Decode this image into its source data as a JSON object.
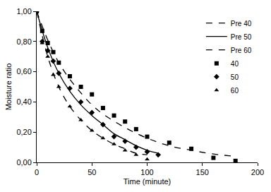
{
  "chart_data": {
    "type": "scatter",
    "x_label": "Time (minute)",
    "y_label": "Moisture ratio",
    "xlim": [
      0,
      200
    ],
    "xticks": [
      0,
      50,
      100,
      150,
      200
    ],
    "ylim": [
      0,
      1
    ],
    "yticks": [
      {
        "value": 0,
        "label": "0,00"
      },
      {
        "value": 0.2,
        "label": "0,20"
      },
      {
        "value": 0.4,
        "label": "0,40"
      },
      {
        "value": 0.6,
        "label": "0,60"
      },
      {
        "value": 0.8,
        "label": "0,80"
      },
      {
        "value": 1,
        "label": "1,00"
      }
    ],
    "grid": false,
    "legend": "upper right",
    "series": [
      {
        "name": "Pre 40",
        "type": "line",
        "line_style": "dashed",
        "color": "#000000",
        "x": [
          0,
          10,
          20,
          30,
          40,
          50,
          60,
          80,
          100,
          120,
          140,
          160,
          180
        ],
        "values": [
          1.0,
          0.81,
          0.66,
          0.55,
          0.46,
          0.38,
          0.32,
          0.23,
          0.16,
          0.11,
          0.08,
          0.055,
          0.04
        ]
      },
      {
        "name": "Pre 50",
        "type": "line",
        "line_style": "solid",
        "color": "#000000",
        "x": [
          0,
          10,
          20,
          30,
          40,
          50,
          60,
          70,
          80,
          90,
          100,
          110
        ],
        "values": [
          1.0,
          0.76,
          0.59,
          0.47,
          0.38,
          0.31,
          0.25,
          0.19,
          0.15,
          0.11,
          0.08,
          0.06
        ]
      },
      {
        "name": "Pre 60",
        "type": "line",
        "line_style": "dashed",
        "color": "#000000",
        "x": [
          0,
          10,
          20,
          30,
          40,
          50,
          60,
          70,
          80,
          90,
          100
        ],
        "values": [
          1.0,
          0.7,
          0.5,
          0.37,
          0.28,
          0.21,
          0.16,
          0.12,
          0.09,
          0.06,
          0.05
        ]
      },
      {
        "name": "40",
        "type": "scatter",
        "marker": "square",
        "color": "#000000",
        "x": [
          0,
          5,
          10,
          15,
          20,
          30,
          40,
          50,
          60,
          70,
          80,
          90,
          100,
          120,
          140,
          160,
          180
        ],
        "values": [
          1.0,
          0.87,
          0.79,
          0.73,
          0.66,
          0.57,
          0.5,
          0.45,
          0.36,
          0.31,
          0.27,
          0.22,
          0.17,
          0.13,
          0.09,
          0.03,
          0.01
        ]
      },
      {
        "name": "50",
        "type": "scatter",
        "marker": "diamond",
        "color": "#000000",
        "x": [
          0,
          5,
          10,
          15,
          20,
          30,
          40,
          50,
          60,
          70,
          80,
          90,
          100,
          110
        ],
        "values": [
          1.0,
          0.8,
          0.74,
          0.67,
          0.59,
          0.49,
          0.4,
          0.33,
          0.25,
          0.17,
          0.14,
          0.1,
          0.07,
          0.05
        ]
      },
      {
        "name": "60",
        "type": "scatter",
        "marker": "triangle",
        "color": "#000000",
        "x": [
          0,
          5,
          10,
          15,
          20,
          30,
          40,
          50,
          60,
          70,
          80,
          90,
          100
        ],
        "values": [
          1.0,
          0.79,
          0.7,
          0.58,
          0.5,
          0.37,
          0.28,
          0.21,
          0.16,
          0.12,
          0.08,
          0.05,
          0.02
        ]
      }
    ]
  }
}
